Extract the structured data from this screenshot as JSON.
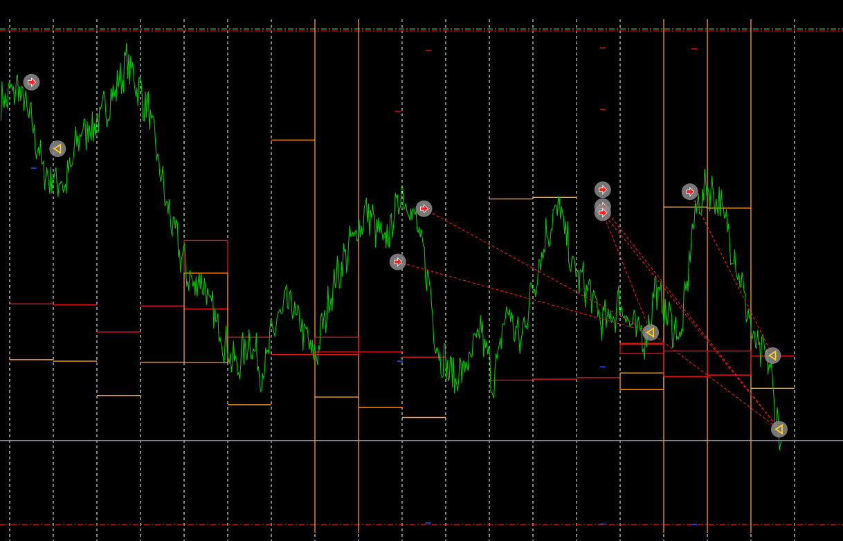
{
  "chart_data": {
    "type": "line",
    "title": "",
    "grid": "vertical-dashed",
    "colors": {
      "background": "#000000",
      "price": "#00c800",
      "grid": "#ffffff",
      "orange_level": "#ffa01e",
      "red_level": "#e61414",
      "green_dash": "#28c828",
      "current_price_line": "#8c96a0",
      "trade_link": "#e61414",
      "marker_halo": "#8c8c8c",
      "buy_arrow": "#ff2020",
      "sell_arrow": "#ffd020"
    },
    "ylim": [
      0,
      100
    ],
    "session_boundaries": [
      0.2,
      1.2,
      2.2,
      3.2,
      4.2,
      5.2,
      6.2,
      7.2,
      8.2,
      9.2,
      10.2,
      11.2,
      12.2,
      13.2,
      14.2,
      15.2,
      16.2,
      17.2,
      18.2
    ],
    "session_count": 20,
    "price_series": {
      "x": [
        0,
        0.4,
        0.7,
        1.0,
        1.5,
        1.8,
        2.2,
        2.6,
        2.9,
        3.4,
        3.8,
        4.1,
        4.4,
        4.6,
        4.8,
        5.0,
        5.4,
        5.7,
        6.0,
        6.3,
        6.6,
        6.9,
        7.2,
        7.6,
        8.0,
        8.4,
        8.8,
        9.2,
        9.5,
        9.8,
        10.0,
        10.4,
        10.8,
        11.0,
        11.3,
        11.6,
        11.9,
        12.2,
        12.5,
        12.8,
        13.1,
        13.5,
        13.8,
        14.0,
        14.2,
        14.5,
        14.8,
        15.0,
        15.3,
        15.6,
        15.9,
        16.2,
        16.5,
        16.8,
        17.0,
        17.3,
        17.6,
        17.9
      ],
      "y": [
        84,
        87,
        80,
        70,
        68,
        78,
        80,
        86,
        92,
        82,
        64,
        55,
        48,
        50,
        44,
        40,
        32,
        38,
        31,
        41,
        45,
        40,
        34,
        48,
        56,
        63,
        56,
        67,
        61,
        50,
        36,
        30,
        34,
        40,
        29,
        44,
        37,
        48,
        58,
        64,
        52,
        47,
        41,
        42,
        45,
        40,
        38,
        48,
        42,
        38,
        62,
        68,
        64,
        55,
        48,
        36,
        34,
        16
      ]
    },
    "orange_levels": [
      {
        "x": [
          0.2,
          1.2
        ],
        "y": 33.8
      },
      {
        "x": [
          1.2,
          2.2
        ],
        "y": 33.5
      },
      {
        "x": [
          2.2,
          3.2
        ],
        "y": 26.8
      },
      {
        "x": [
          3.2,
          4.2
        ],
        "y": 33.3
      },
      {
        "x": [
          4.2,
          5.2
        ],
        "y": 50.7
      },
      {
        "x": [
          5.2,
          6.2
        ],
        "y": 25.0
      },
      {
        "x": [
          6.2,
          7.2
        ],
        "y": 76.7
      },
      {
        "x": [
          7.2,
          8.2
        ],
        "y": 26.5
      },
      {
        "x": [
          8.2,
          9.2
        ],
        "y": 24.5
      },
      {
        "x": [
          9.2,
          10.2
        ],
        "y": 22.5
      },
      {
        "x": [
          11.2,
          12.2
        ],
        "y": 65.2
      },
      {
        "x": [
          12.2,
          13.2
        ],
        "y": 65.5
      },
      {
        "x": [
          14.2,
          15.2
        ],
        "y": 28.0
      },
      {
        "x": [
          15.2,
          16.2
        ],
        "y": 63.6
      },
      {
        "x": [
          16.2,
          17.2
        ],
        "y": 63.4
      },
      {
        "x": [
          17.2,
          18.2
        ],
        "y": 28.2
      }
    ],
    "red_levels": [
      {
        "x": [
          0.2,
          1.2
        ],
        "y": 44.7
      },
      {
        "x": [
          1.2,
          2.2
        ],
        "y": 44.5
      },
      {
        "x": [
          2.2,
          3.2
        ],
        "y": 39.2
      },
      {
        "x": [
          3.2,
          4.2
        ],
        "y": 44.3
      },
      {
        "x": [
          4.2,
          5.2
        ],
        "y": 43.7
      },
      {
        "x": [
          5.2,
          6.2
        ],
        "y": 38.2
      },
      {
        "x": [
          6.2,
          7.2
        ],
        "y": 34.8
      },
      {
        "x": [
          7.2,
          8.2
        ],
        "y": 35.3
      },
      {
        "x": [
          8.2,
          9.2
        ],
        "y": 35.3
      },
      {
        "x": [
          9.2,
          10.2
        ],
        "y": 34.3
      },
      {
        "x": [
          11.2,
          12.2
        ],
        "y": 29.8
      },
      {
        "x": [
          12.2,
          13.2
        ],
        "y": 30.0
      },
      {
        "x": [
          13.2,
          14.2
        ],
        "y": 30.3
      },
      {
        "x": [
          14.2,
          15.2
        ],
        "y": 36.8
      },
      {
        "x": [
          15.2,
          16.2
        ],
        "y": 30.5
      },
      {
        "x": [
          16.2,
          17.2
        ],
        "y": 30.8
      },
      {
        "x": [
          17.2,
          18.2
        ],
        "y": 34.5
      }
    ],
    "boxes": [
      {
        "color": "red",
        "x": [
          4.2,
          5.2
        ],
        "y": [
          50.7,
          57.1
        ]
      },
      {
        "color": "orange",
        "x": [
          4.2,
          5.2
        ],
        "y": [
          33.3,
          50.7
        ]
      },
      {
        "color": "red",
        "x": [
          7.2,
          8.2
        ],
        "y": [
          34.8,
          38.2
        ]
      },
      {
        "color": "orange",
        "x": [
          14.2,
          15.2
        ],
        "y": [
          28.0,
          31.2
        ]
      },
      {
        "color": "red",
        "x": [
          14.2,
          15.2
        ],
        "y": [
          35.0,
          37.0
        ]
      },
      {
        "color": "red",
        "x": [
          15.2,
          16.2
        ],
        "y": [
          30.5,
          35.5
        ]
      },
      {
        "color": "red",
        "x": [
          16.2,
          17.2
        ],
        "y": [
          30.8,
          35.5
        ]
      }
    ],
    "orange_verticals": [
      {
        "x": 7.2,
        "y": [
          0,
          100
        ]
      },
      {
        "x": 8.2,
        "y": [
          0,
          100
        ]
      },
      {
        "x": 15.2,
        "y": [
          0,
          100
        ]
      },
      {
        "x": 16.2,
        "y": [
          0,
          100
        ]
      },
      {
        "x": 17.2,
        "y": [
          0,
          100
        ]
      }
    ],
    "horizontal_dashed": [
      {
        "color": "green",
        "y": 98.4
      },
      {
        "color": "red",
        "y": 98.0
      },
      {
        "color": "red",
        "y": 1.6
      }
    ],
    "current_price": 18.0,
    "trades": [
      {
        "type": "buy",
        "x": 0.7,
        "y": 88.0
      },
      {
        "type": "sell",
        "x": 1.3,
        "y": 75.0
      },
      {
        "type": "buy",
        "x": 9.7,
        "y": 63.3
      },
      {
        "type": "buy",
        "x": 9.1,
        "y": 52.9
      },
      {
        "type": "buy",
        "x": 13.8,
        "y": 67.0
      },
      {
        "type": "buy",
        "x": 13.8,
        "y": 63.7
      },
      {
        "type": "buy",
        "x": 13.8,
        "y": 62.5
      },
      {
        "type": "buy",
        "x": 15.8,
        "y": 66.6
      },
      {
        "type": "sell",
        "x": 14.9,
        "y": 39.1
      },
      {
        "type": "sell",
        "x": 17.7,
        "y": 34.6
      },
      {
        "type": "sell",
        "x": 17.85,
        "y": 20.2
      }
    ],
    "trade_links": [
      {
        "from": [
          9.7,
          63.3
        ],
        "to": [
          14.9,
          39.1
        ]
      },
      {
        "from": [
          9.1,
          52.9
        ],
        "to": [
          14.9,
          39.1
        ]
      },
      {
        "from": [
          13.8,
          62.5
        ],
        "to": [
          14.9,
          39.1
        ]
      },
      {
        "from": [
          13.8,
          63.7
        ],
        "to": [
          17.85,
          20.2
        ]
      },
      {
        "from": [
          13.8,
          62.5
        ],
        "to": [
          17.85,
          20.2
        ]
      },
      {
        "from": [
          15.8,
          66.6
        ],
        "to": [
          17.7,
          34.6
        ]
      },
      {
        "from": [
          14.9,
          39.1
        ],
        "to": [
          17.85,
          20.2
        ]
      }
    ],
    "small_ticks": [
      {
        "color": "red",
        "x": 9.8,
        "y": 94.2
      },
      {
        "color": "red",
        "x": 9.1,
        "y": 82.3
      },
      {
        "color": "red",
        "x": 13.8,
        "y": 94.7
      },
      {
        "color": "red",
        "x": 13.8,
        "y": 82.7
      },
      {
        "color": "red",
        "x": 15.9,
        "y": 94.5
      },
      {
        "color": "blue",
        "x": 0.75,
        "y": 71.2
      },
      {
        "color": "blue",
        "x": 9.15,
        "y": 33.5
      },
      {
        "color": "blue",
        "x": 13.8,
        "y": 32.4
      },
      {
        "color": "blue",
        "x": 9.8,
        "y": 1.9
      },
      {
        "color": "blue",
        "x": 13.8,
        "y": 1.7
      },
      {
        "color": "blue",
        "x": 15.9,
        "y": 1.6
      }
    ]
  }
}
